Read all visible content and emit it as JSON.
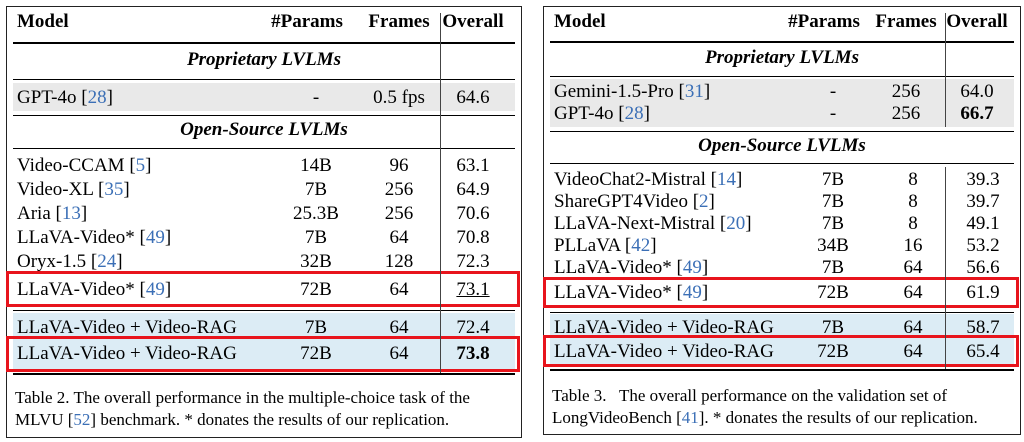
{
  "table2": {
    "headers": {
      "model": "Model",
      "params": "#Params",
      "frames": "Frames",
      "overall": "Overall"
    },
    "section_proprietary": "Proprietary LVLMs",
    "section_open": "Open-Source LVLMs",
    "proprietary": [
      {
        "model": "GPT-4o",
        "cite": "28",
        "params": "-",
        "frames": "0.5 fps",
        "overall": "64.6"
      }
    ],
    "open": [
      {
        "model": "Video-CCAM",
        "cite": "5",
        "params": "14B",
        "frames": "96",
        "overall": "63.1"
      },
      {
        "model": "Video-XL",
        "cite": "35",
        "params": "7B",
        "frames": "256",
        "overall": "64.9"
      },
      {
        "model": "Aria",
        "cite": "13",
        "params": "25.3B",
        "frames": "256",
        "overall": "70.6"
      },
      {
        "model": "LLaVA-Video*",
        "cite": "49",
        "params": "7B",
        "frames": "64",
        "overall": "70.8"
      },
      {
        "model": "Oryx-1.5",
        "cite": "24",
        "params": "32B",
        "frames": "128",
        "overall": "72.3"
      },
      {
        "model": "LLaVA-Video*",
        "cite": "49",
        "params": "72B",
        "frames": "64",
        "overall": "73.1"
      }
    ],
    "ours": [
      {
        "model": "LLaVA-Video + Video-RAG",
        "params": "7B",
        "frames": "64",
        "overall": "72.4"
      },
      {
        "model": "LLaVA-Video + Video-RAG",
        "params": "72B",
        "frames": "64",
        "overall": "73.8"
      }
    ],
    "caption_line1": "Table 2. The overall performance in the multiple-choice task of the",
    "caption_line2_a": "MLVU [",
    "caption_line2_cite": "52",
    "caption_line2_b": "] benchmark. * donates the results of our replication."
  },
  "table3": {
    "headers": {
      "model": "Model",
      "params": "#Params",
      "frames": "Frames",
      "overall": "Overall"
    },
    "section_proprietary": "Proprietary LVLMs",
    "section_open": "Open-Source LVLMs",
    "proprietary": [
      {
        "model": "Gemini-1.5-Pro",
        "cite": "31",
        "params": "-",
        "frames": "256",
        "overall": "64.0"
      },
      {
        "model": "GPT-4o",
        "cite": "28",
        "params": "-",
        "frames": "256",
        "overall": "66.7"
      }
    ],
    "open": [
      {
        "model": "VideoChat2-Mistral",
        "cite": "14",
        "params": "7B",
        "frames": "8",
        "overall": "39.3"
      },
      {
        "model": "ShareGPT4Video",
        "cite": "2",
        "params": "7B",
        "frames": "8",
        "overall": "39.7"
      },
      {
        "model": "LLaVA-Next-Mistral",
        "cite": "20",
        "params": "7B",
        "frames": "8",
        "overall": "49.1"
      },
      {
        "model": "PLLaVA",
        "cite": "42",
        "params": "34B",
        "frames": "16",
        "overall": "53.2"
      },
      {
        "model": "LLaVA-Video*",
        "cite": "49",
        "params": "7B",
        "frames": "64",
        "overall": "56.6"
      },
      {
        "model": "LLaVA-Video*",
        "cite": "49",
        "params": "72B",
        "frames": "64",
        "overall": "61.9"
      }
    ],
    "ours": [
      {
        "model": "LLaVA-Video + Video-RAG",
        "params": "7B",
        "frames": "64",
        "overall": "58.7"
      },
      {
        "model": "LLaVA-Video + Video-RAG",
        "params": "72B",
        "frames": "64",
        "overall": "65.4"
      }
    ],
    "caption_line1": "Table 3.   The overall performance on the validation set of",
    "caption_line2_a": "LongVideoBench [",
    "caption_line2_cite": "41",
    "caption_line2_b": "]. * donates the results of our replication."
  },
  "colors": {
    "highlight_box": "#e8141c",
    "proprietary_bg": "#e9e9e9",
    "ours_bg": "#dcecf5",
    "citation": "#3b6fb6"
  }
}
